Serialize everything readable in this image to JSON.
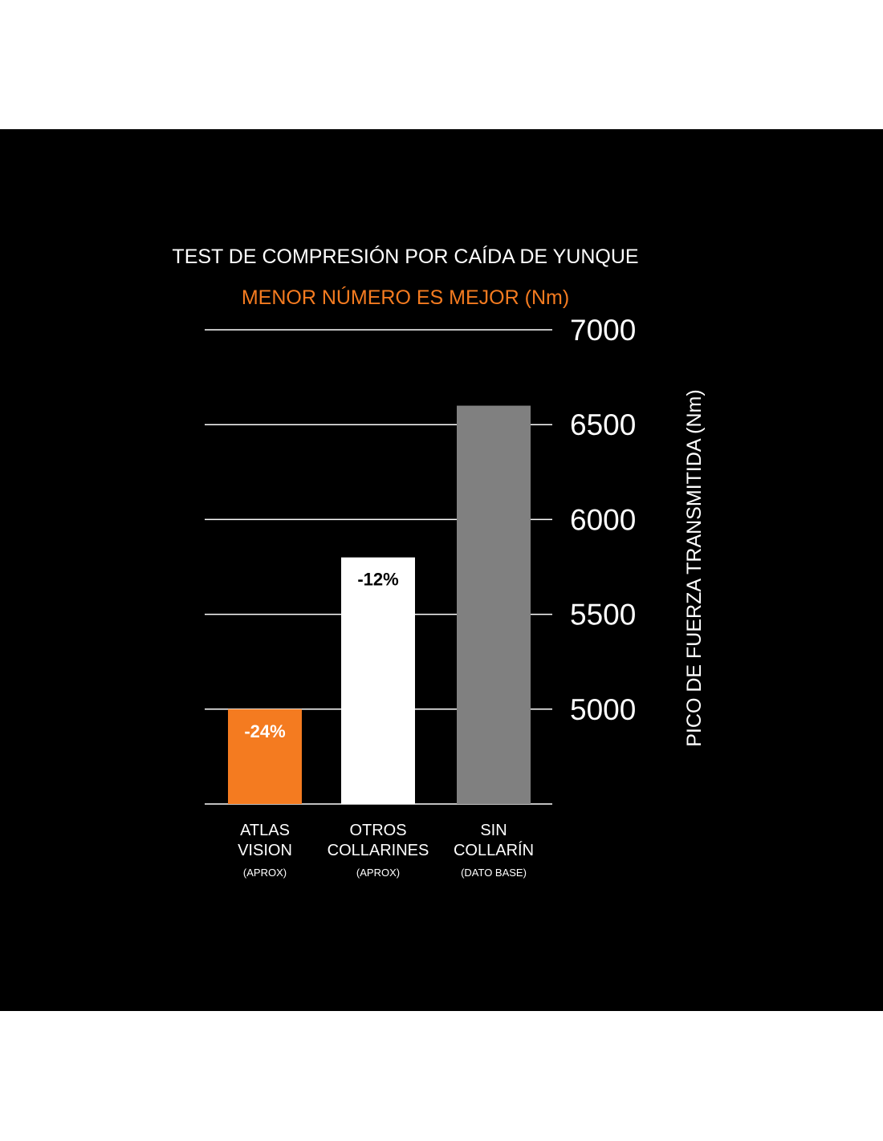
{
  "chart_data": {
    "type": "bar",
    "title": "TEST DE COMPRESIÓN POR CAÍDA DE YUNQUE",
    "subtitle": "MENOR NÚMERO ES MEJOR (Nm)",
    "ylabel": "PICO DE FUERZA TRANSMITIDA (Nm)",
    "xlabel": "",
    "ylim": [
      4500,
      7000
    ],
    "yticks": [
      7000,
      6500,
      6000,
      5500,
      5000
    ],
    "grid": true,
    "categories": [
      {
        "line1": "ATLAS",
        "line2": "VISION",
        "note": "(APROX)"
      },
      {
        "line1": "OTROS",
        "line2": "COLLARINES",
        "note": "(APROX)"
      },
      {
        "line1": "SIN",
        "line2": "COLLARÍN",
        "note": "(DATO BASE)"
      }
    ],
    "values": [
      5000,
      5800,
      6600
    ],
    "data_labels": [
      "-24%",
      "-12%",
      ""
    ],
    "colors": {
      "bars": [
        "#f47b20",
        "#ffffff",
        "#808080"
      ],
      "data_labels": [
        "#ffffff",
        "#000000",
        "#000000"
      ],
      "subtitle": "#f47b20",
      "text": "#ffffff",
      "background": "#000000"
    }
  }
}
